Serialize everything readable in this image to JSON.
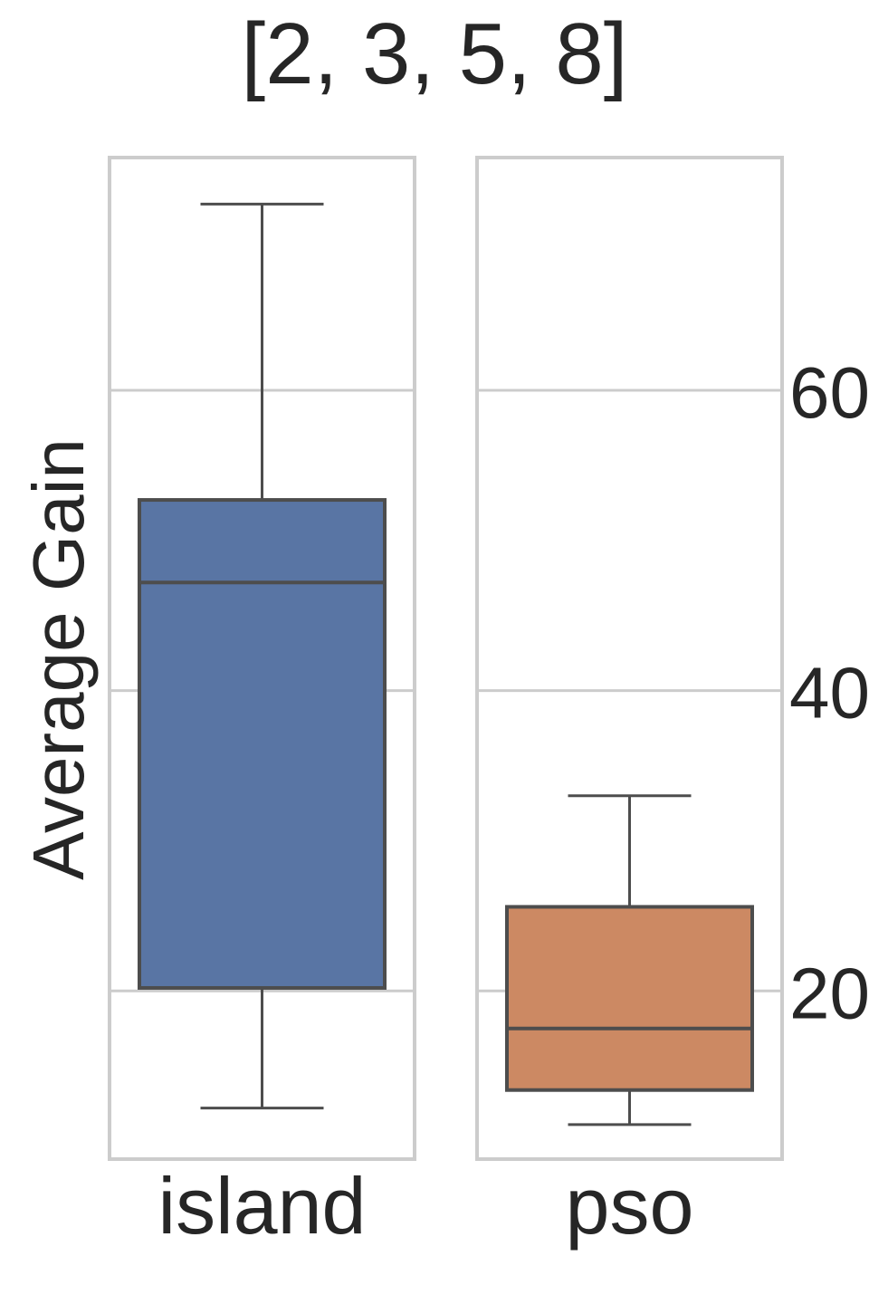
{
  "chart_data": {
    "type": "box",
    "title": "[2, 3, 5, 8]",
    "ylabel": "Average Gain",
    "xlabel": "",
    "ylim": [
      8.8,
      75.5
    ],
    "yticks": [
      20,
      40,
      60
    ],
    "grid": true,
    "facets": [
      {
        "category": "island",
        "color": "#5975a4",
        "whisker_low": 12.2,
        "q1": 20.2,
        "median": 47.2,
        "q3": 52.7,
        "whisker_high": 72.4
      },
      {
        "category": "pso",
        "color": "#cc8963",
        "whisker_low": 11.1,
        "q1": 13.4,
        "median": 17.5,
        "q3": 25.6,
        "whisker_high": 33.0
      }
    ]
  }
}
